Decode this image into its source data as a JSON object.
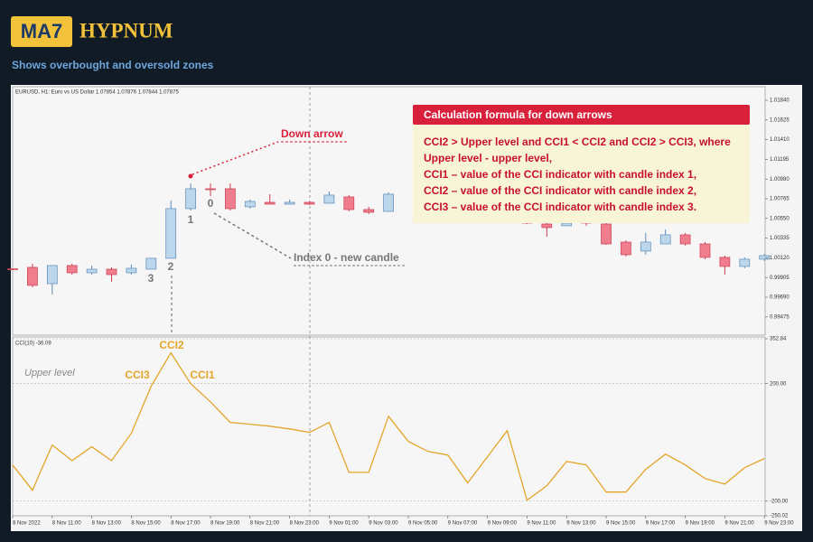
{
  "header": {
    "logo": "MA7",
    "brand": "HYPNUM",
    "subtitle": "Shows overbought and oversold zones"
  },
  "chart_data": [
    {
      "type": "candlestick",
      "title": "EURUSD, H1:  Euro vs US Dollar  1.07854 1.07876 1.07844 1.07875",
      "categories": [
        "8 Nov 2022",
        null,
        "8 Nov 11:00",
        null,
        "8 Nov 13:00",
        null,
        "8 Nov 15:00",
        null,
        "8 Nov 17:00",
        null,
        "8 Nov 19:00",
        null,
        "8 Nov 21:00",
        null,
        "8 Nov 23:00",
        null,
        "9 Nov 01:00",
        null,
        "9 Nov 03:00",
        null,
        "9 Nov 05:00",
        null,
        "9 Nov 07:00",
        null,
        "9 Nov 09:00",
        null,
        "9 Nov 11:00",
        null,
        "9 Nov 13:00",
        null,
        "9 Nov 15:00",
        null,
        "9 Nov 17:00",
        null,
        "9 Nov 19:00",
        null,
        "9 Nov 21:00",
        null,
        "9 Nov 23:00"
      ],
      "open": [
        1.0,
        1.00016,
        0.99838,
        1.00036,
        0.99957,
        0.99996,
        0.99957,
        0.99996,
        1.00115,
        1.00657,
        1.00874,
        1.00874,
        1.00677,
        1.00726,
        1.00706,
        1.00726,
        1.00716,
        1.00785,
        1.00647,
        1.00627,
        null,
        null,
        null,
        null,
        null,
        null,
        1.00519,
        1.00489,
        1.0047,
        1.00529,
        1.00489,
        1.00292,
        1.00194,
        1.00272,
        1.00371,
        1.00272,
        1.00125,
        1.00026,
        1.00105
      ],
      "high": [
        1.00005,
        1.00055,
        1.00036,
        1.00055,
        1.00036,
        1.00016,
        1.00046,
        1.00115,
        1.00746,
        1.00933,
        1.00933,
        1.00933,
        1.00756,
        1.00815,
        1.00756,
        1.00736,
        1.00844,
        1.00805,
        1.00677,
        1.00834,
        null,
        null,
        null,
        null,
        null,
        null,
        1.00549,
        1.00509,
        1.00519,
        1.00549,
        1.00519,
        1.00312,
        1.00391,
        1.0043,
        1.00391,
        1.00292,
        1.00144,
        1.00125,
        1.00164
      ],
      "low": [
        0.9999,
        0.99799,
        0.9972,
        0.99937,
        0.99937,
        0.99858,
        0.99937,
        0.99996,
        1.00115,
        1.00637,
        1.00795,
        1.00637,
        1.00657,
        1.00706,
        1.00706,
        1.00696,
        1.00716,
        1.00627,
        1.00598,
        1.00627,
        null,
        null,
        null,
        null,
        null,
        null,
        1.00489,
        1.00351,
        1.0047,
        1.0047,
        1.00262,
        1.00134,
        1.00154,
        1.00272,
        1.00253,
        1.00105,
        0.99937,
        1.00006,
        1.00085
      ],
      "close": [
        0.99995,
        0.99819,
        1.00036,
        0.99957,
        0.99996,
        0.99937,
        1.00006,
        1.00115,
        1.00657,
        1.00874,
        1.00864,
        1.00657,
        1.00736,
        1.00706,
        1.00726,
        1.00706,
        1.00805,
        1.00647,
        1.00617,
        1.00815,
        null,
        null,
        null,
        null,
        null,
        null,
        1.00499,
        1.0045,
        1.00499,
        1.00499,
        1.00272,
        1.00154,
        1.00292,
        1.00371,
        1.00272,
        1.00125,
        1.00026,
        1.00105,
        1.00144
      ],
      "up_color": "#bcd6ec",
      "up_edge": "#5b8bb8",
      "down_color": "#f07d8e",
      "down_edge": "#cc3c50",
      "ylim": [
        0.99276,
        1.01988
      ],
      "yticks": [
        {
          "value": 1.0184,
          "label": "1.01840"
        },
        {
          "value": 1.01625,
          "label": "1.01625"
        },
        {
          "value": 1.0141,
          "label": "1.01410"
        },
        {
          "value": 1.01195,
          "label": "1.01195"
        },
        {
          "value": 1.0098,
          "label": "1.00980"
        },
        {
          "value": 1.00765,
          "label": "1.00765"
        },
        {
          "value": 1.0055,
          "label": "1.00550"
        },
        {
          "value": 1.00335,
          "label": "1.00335"
        },
        {
          "value": 1.0012,
          "label": "1.00120"
        },
        {
          "value": 0.99905,
          "label": "0.99905"
        },
        {
          "value": 0.9969,
          "label": "0.99690"
        },
        {
          "value": 0.99475,
          "label": "0.99475"
        }
      ],
      "annotations": [
        "Down arrow",
        "Index 0 - new candle",
        "1",
        "0",
        "2",
        "3"
      ],
      "info_box": {
        "title": "Calculation formula for down arrows",
        "lines": [
          "CCI2 > Upper level and CCI1 < CCI2 and CCI2 > CCI3, where",
          "Upper level - upper level,",
          "CCI1 – value of the CCI indicator with candle index 1,",
          "CCI2 – value of the CCI indicator with candle index 2,",
          "CCI3 – value of the CCI indicator with candle index 3."
        ]
      }
    },
    {
      "type": "line",
      "title": "CCI(10) -36.09",
      "values": [
        -76.9,
        -163,
        -9,
        -62,
        -15,
        -62,
        31,
        191,
        305,
        200,
        138,
        68,
        62,
        55,
        46,
        34,
        68,
        -102,
        -102,
        89,
        3,
        -31,
        -43,
        -138,
        -49,
        40,
        -197,
        -148,
        -65,
        -77,
        -169,
        -169,
        -92,
        -40,
        -77,
        -123,
        -142,
        -86,
        -55
      ],
      "color": "#e3a52a",
      "ylim": [
        -250.02,
        352.84
      ],
      "yticks": [
        352.84,
        {
          "value": 200,
          "label": "200.00"
        },
        {
          "value": -200,
          "label": "-200.00"
        },
        -250.02
      ],
      "grid": true,
      "annotations": [
        "CCI2",
        "CCI3",
        "CCI1",
        "Upper level"
      ]
    }
  ]
}
